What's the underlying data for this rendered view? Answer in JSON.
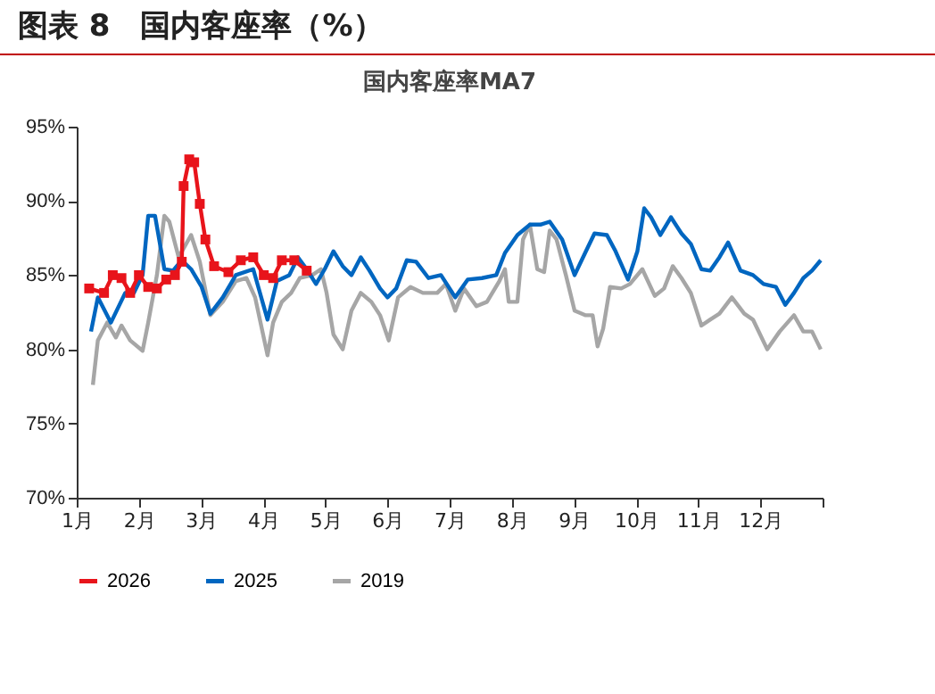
{
  "chart_data": {
    "type": "line",
    "title": "图表 8　国内客座率（%）",
    "subtitle": "国内客座率MA7",
    "xlim": [
      1,
      13
    ],
    "xticks": [
      {
        "value": 1,
        "label": "1月"
      },
      {
        "value": 2,
        "label": "2月"
      },
      {
        "value": 3,
        "label": "3月"
      },
      {
        "value": 4,
        "label": "4月"
      },
      {
        "value": 5,
        "label": "5月"
      },
      {
        "value": 6,
        "label": "6月"
      },
      {
        "value": 7,
        "label": "7月"
      },
      {
        "value": 8,
        "label": "8月"
      },
      {
        "value": 9,
        "label": "9月"
      },
      {
        "value": 10,
        "label": "10月"
      },
      {
        "value": 11,
        "label": "11月"
      },
      {
        "value": 12,
        "label": "12月"
      },
      {
        "value": 13,
        "label": null
      }
    ],
    "ylim": [
      70,
      95
    ],
    "yticks": [
      {
        "value": 70,
        "label": "70%"
      },
      {
        "value": 75,
        "label": "75%"
      },
      {
        "value": 80,
        "label": "80%"
      },
      {
        "value": 85,
        "label": "85%"
      },
      {
        "value": 90,
        "label": "90%"
      },
      {
        "value": 95,
        "label": "95%"
      }
    ],
    "grid": false,
    "legend": "bottom",
    "series": [
      {
        "name": "2026",
        "color": "#e8141b",
        "marker": "square",
        "x": [
          1.2,
          1.44,
          1.58,
          1.72,
          1.86,
          2.0,
          2.15,
          2.29,
          2.44,
          2.58,
          2.69,
          2.72,
          2.81,
          2.89,
          2.98,
          3.07,
          3.21,
          3.44,
          3.64,
          3.84,
          4.01,
          4.16,
          4.3,
          4.5,
          4.7
        ],
        "values": [
          84.1,
          83.8,
          85.0,
          84.8,
          83.8,
          85.0,
          84.2,
          84.1,
          84.7,
          85.0,
          85.9,
          91.0,
          92.8,
          92.6,
          89.8,
          87.4,
          85.6,
          85.2,
          86.0,
          86.2,
          85.0,
          84.8,
          86.0,
          86.0,
          85.3
        ]
      },
      {
        "name": "2025",
        "color": "#0066c0",
        "x": [
          1.23,
          1.34,
          1.55,
          1.78,
          1.92,
          2.06,
          2.15,
          2.26,
          2.41,
          2.55,
          2.69,
          2.84,
          3.01,
          3.15,
          3.35,
          3.56,
          3.84,
          4.07,
          4.22,
          4.42,
          4.56,
          4.7,
          4.85,
          4.99,
          5.13,
          5.28,
          5.42,
          5.57,
          5.71,
          5.88,
          6.0,
          6.14,
          6.31,
          6.46,
          6.66,
          6.86,
          7.09,
          7.29,
          7.52,
          7.75,
          7.89,
          8.09,
          8.29,
          8.46,
          8.61,
          8.81,
          9.01,
          9.18,
          9.33,
          9.53,
          9.67,
          9.87,
          10.02,
          10.13,
          10.24,
          10.39,
          10.56,
          10.73,
          10.88,
          11.05,
          11.19,
          11.34,
          11.48,
          11.68,
          11.88,
          12.05,
          12.25,
          12.4,
          12.54,
          12.69,
          12.83,
          12.97
        ],
        "values": [
          81.2,
          83.5,
          81.8,
          83.8,
          83.8,
          85.0,
          89.0,
          89.0,
          85.4,
          85.3,
          86.0,
          85.4,
          84.2,
          82.4,
          83.5,
          85.0,
          85.4,
          82.0,
          84.6,
          85.0,
          86.2,
          85.4,
          84.4,
          85.4,
          86.6,
          85.6,
          85.0,
          86.2,
          85.3,
          84.1,
          83.5,
          84.1,
          86.0,
          85.9,
          84.8,
          85.0,
          83.5,
          84.7,
          84.8,
          85.0,
          86.5,
          87.7,
          88.4,
          88.4,
          88.6,
          87.4,
          85.0,
          86.5,
          87.8,
          87.7,
          86.6,
          84.7,
          86.6,
          89.5,
          88.9,
          87.7,
          88.9,
          87.8,
          87.1,
          85.4,
          85.3,
          86.2,
          87.2,
          85.3,
          85.0,
          84.4,
          84.2,
          83.0,
          83.8,
          84.8,
          85.3,
          86.0
        ]
      },
      {
        "name": "2019",
        "color": "#a6a6a6",
        "x": [
          1.26,
          1.34,
          1.49,
          1.63,
          1.72,
          1.86,
          2.06,
          2.15,
          2.29,
          2.41,
          2.49,
          2.64,
          2.84,
          2.98,
          3.15,
          3.35,
          3.56,
          3.73,
          3.87,
          4.07,
          4.16,
          4.3,
          4.45,
          4.59,
          4.79,
          4.93,
          5.02,
          5.13,
          5.28,
          5.42,
          5.57,
          5.74,
          5.88,
          6.02,
          6.17,
          6.37,
          6.57,
          6.8,
          6.94,
          7.09,
          7.23,
          7.43,
          7.6,
          7.8,
          7.89,
          7.95,
          8.09,
          8.18,
          8.29,
          8.41,
          8.52,
          8.61,
          8.72,
          8.87,
          9.01,
          9.18,
          9.3,
          9.38,
          9.47,
          9.58,
          9.76,
          9.9,
          10.1,
          10.3,
          10.45,
          10.59,
          10.73,
          10.88,
          11.05,
          11.19,
          11.34,
          11.54,
          11.74,
          11.88,
          12.11,
          12.31,
          12.54,
          12.69,
          12.83,
          12.97
        ],
        "values": [
          77.6,
          80.6,
          81.8,
          80.8,
          81.6,
          80.6,
          79.9,
          81.8,
          85.0,
          89.0,
          88.6,
          86.2,
          87.7,
          85.9,
          82.3,
          83.2,
          84.6,
          84.8,
          83.5,
          79.6,
          81.8,
          83.2,
          83.8,
          84.8,
          85.0,
          85.4,
          83.8,
          81.0,
          80.0,
          82.6,
          83.8,
          83.2,
          82.3,
          80.6,
          83.5,
          84.2,
          83.8,
          83.8,
          84.4,
          82.6,
          84.1,
          82.9,
          83.2,
          84.6,
          85.4,
          83.2,
          83.2,
          87.4,
          88.4,
          85.4,
          85.2,
          88.0,
          87.4,
          85.0,
          82.6,
          82.3,
          82.3,
          80.2,
          81.4,
          84.2,
          84.1,
          84.4,
          85.4,
          83.6,
          84.1,
          85.6,
          84.8,
          83.8,
          81.6,
          82.0,
          82.4,
          83.5,
          82.4,
          82.0,
          80.0,
          81.2,
          82.3,
          81.2,
          81.2,
          80.0
        ]
      }
    ]
  }
}
